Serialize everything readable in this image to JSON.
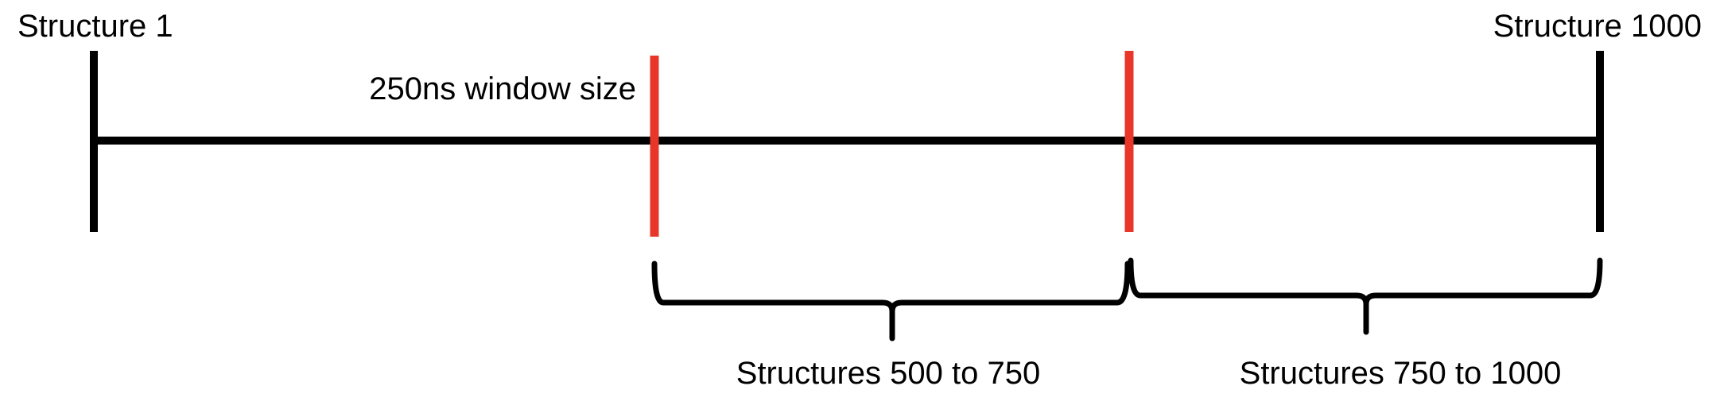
{
  "diagram": {
    "start_label": "Structure 1",
    "end_label": "Structure 1000",
    "window_label": "250ns window size",
    "range_1_label": "Structures 500 to 750",
    "range_2_label": "Structures 750 to 1000"
  },
  "colors": {
    "timeline": "#000000",
    "window_marker": "#e8372a",
    "text": "#000000"
  }
}
